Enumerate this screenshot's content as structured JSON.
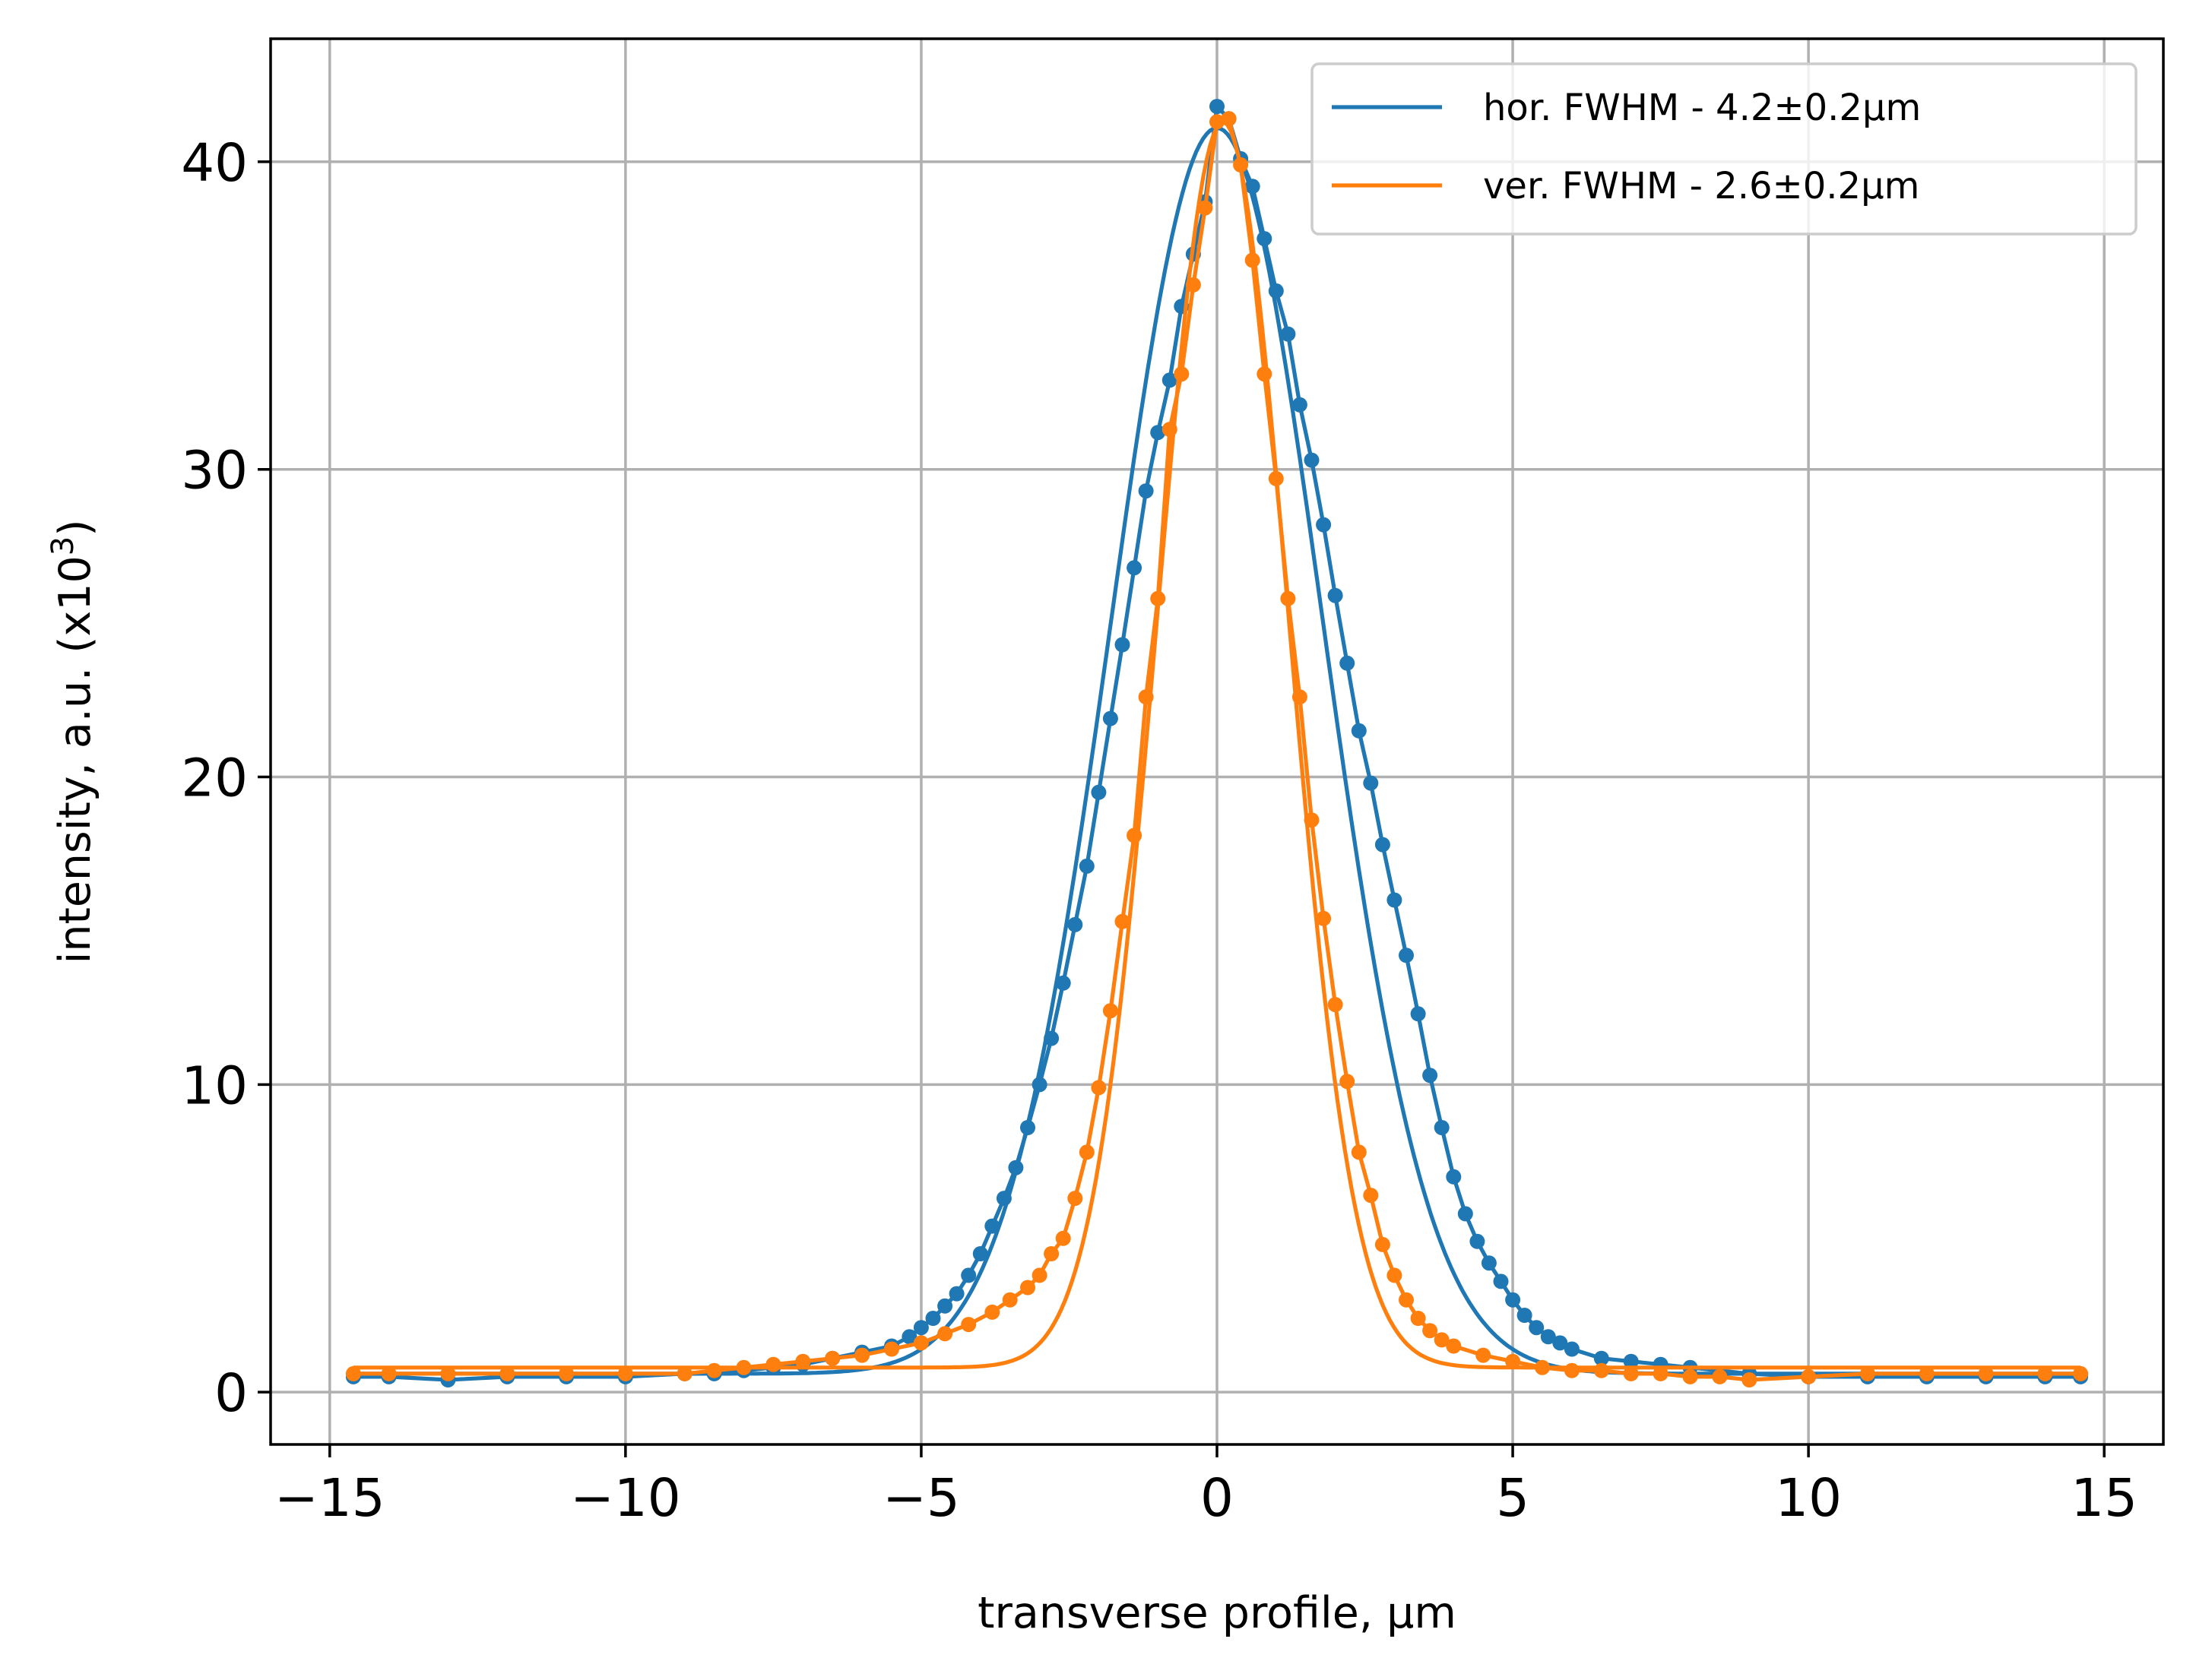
{
  "chart_data": {
    "type": "line",
    "xlabel": "transverse profile, µm",
    "ylabel": "intensity, a.u. (x10",
    "ylabel_superscript": "3",
    "ylabel_suffix": ")",
    "xlim": [
      -16.0,
      16.0
    ],
    "ylim": [
      -1.7,
      44.0
    ],
    "x_ticks": [
      -15,
      -10,
      -5,
      0,
      5,
      10,
      15
    ],
    "x_tick_labels": [
      "−15",
      "−10",
      "−5",
      "0",
      "5",
      "10",
      "15"
    ],
    "y_ticks": [
      0,
      10,
      20,
      30,
      40
    ],
    "y_tick_labels": [
      "0",
      "10",
      "20",
      "30",
      "40"
    ],
    "grid": true,
    "legend_position": "top-right",
    "colors": {
      "horizontal": "#1f77b4",
      "vertical": "#ff7f0e"
    },
    "series": [
      {
        "name": "hor. FWHM - 4.2±0.2µm",
        "color": "#1f77b4",
        "data_points": {
          "x": [
            -14.6,
            -14.0,
            -13.0,
            -12.0,
            -11.0,
            -10.0,
            -9.0,
            -8.5,
            -8.0,
            -7.5,
            -7.0,
            -6.5,
            -6.0,
            -5.5,
            -5.2,
            -5.0,
            -4.8,
            -4.6,
            -4.4,
            -4.2,
            -4.0,
            -3.8,
            -3.6,
            -3.4,
            -3.2,
            -3.0,
            -2.8,
            -2.6,
            -2.4,
            -2.2,
            -2.0,
            -1.8,
            -1.6,
            -1.4,
            -1.2,
            -1.0,
            -0.8,
            -0.6,
            -0.4,
            -0.2,
            0.0,
            0.2,
            0.4,
            0.6,
            0.8,
            1.0,
            1.2,
            1.4,
            1.6,
            1.8,
            2.0,
            2.2,
            2.4,
            2.6,
            2.8,
            3.0,
            3.2,
            3.4,
            3.6,
            3.8,
            4.0,
            4.2,
            4.4,
            4.6,
            4.8,
            5.0,
            5.2,
            5.4,
            5.6,
            5.8,
            6.0,
            6.5,
            7.0,
            7.5,
            8.0,
            9.0,
            10.0,
            11.0,
            12.0,
            13.0,
            14.0,
            14.6
          ],
          "y": [
            0.5,
            0.5,
            0.4,
            0.5,
            0.5,
            0.5,
            0.6,
            0.6,
            0.7,
            0.8,
            0.9,
            1.1,
            1.3,
            1.5,
            1.8,
            2.1,
            2.4,
            2.8,
            3.2,
            3.8,
            4.5,
            5.4,
            6.3,
            7.3,
            8.6,
            10.0,
            11.5,
            13.3,
            15.2,
            17.1,
            19.5,
            21.9,
            24.3,
            26.8,
            29.3,
            31.2,
            32.9,
            35.3,
            37.0,
            38.7,
            41.8,
            41.4,
            40.1,
            39.2,
            37.5,
            35.8,
            34.4,
            32.1,
            30.3,
            28.2,
            25.9,
            23.7,
            21.5,
            19.8,
            17.8,
            16.0,
            14.2,
            12.3,
            10.3,
            8.6,
            7.0,
            5.8,
            4.9,
            4.2,
            3.6,
            3.0,
            2.5,
            2.1,
            1.8,
            1.6,
            1.4,
            1.1,
            1.0,
            0.9,
            0.8,
            0.6,
            0.5,
            0.5,
            0.5,
            0.5,
            0.5,
            0.5
          ]
        },
        "fit": {
          "model": "gaussian",
          "amplitude": 40.5,
          "center": 0.0,
          "fwhm": 4.2,
          "offset": 0.6
        }
      },
      {
        "name": "ver. FWHM - 2.6±0.2µm",
        "color": "#ff7f0e",
        "data_points": {
          "x": [
            -14.6,
            -14.0,
            -13.0,
            -12.0,
            -11.0,
            -10.0,
            -9.0,
            -8.5,
            -8.0,
            -7.5,
            -7.0,
            -6.5,
            -6.0,
            -5.5,
            -5.0,
            -4.6,
            -4.2,
            -3.8,
            -3.5,
            -3.2,
            -3.0,
            -2.8,
            -2.6,
            -2.4,
            -2.2,
            -2.0,
            -1.8,
            -1.6,
            -1.4,
            -1.2,
            -1.0,
            -0.8,
            -0.6,
            -0.4,
            -0.2,
            0.0,
            0.2,
            0.4,
            0.6,
            0.8,
            1.0,
            1.2,
            1.4,
            1.6,
            1.8,
            2.0,
            2.2,
            2.4,
            2.6,
            2.8,
            3.0,
            3.2,
            3.4,
            3.6,
            3.8,
            4.0,
            4.5,
            5.0,
            5.5,
            6.0,
            6.5,
            7.0,
            7.5,
            8.0,
            8.5,
            9.0,
            10.0,
            11.0,
            12.0,
            13.0,
            14.0,
            14.6
          ],
          "y": [
            0.6,
            0.6,
            0.6,
            0.6,
            0.6,
            0.6,
            0.6,
            0.7,
            0.8,
            0.9,
            1.0,
            1.1,
            1.2,
            1.4,
            1.6,
            1.9,
            2.2,
            2.6,
            3.0,
            3.4,
            3.8,
            4.5,
            5.0,
            6.3,
            7.8,
            9.9,
            12.4,
            15.3,
            18.1,
            22.6,
            25.8,
            31.3,
            33.1,
            36.0,
            38.5,
            41.3,
            41.4,
            39.9,
            36.8,
            33.1,
            29.7,
            25.8,
            22.6,
            18.6,
            15.4,
            12.6,
            10.1,
            7.8,
            6.4,
            4.8,
            3.8,
            3.0,
            2.4,
            2.0,
            1.7,
            1.5,
            1.2,
            1.0,
            0.8,
            0.7,
            0.7,
            0.6,
            0.6,
            0.5,
            0.5,
            0.4,
            0.5,
            0.6,
            0.6,
            0.6,
            0.6,
            0.6
          ]
        },
        "fit": {
          "model": "gaussian",
          "amplitude": 40.5,
          "center": 0.1,
          "fwhm": 2.6,
          "offset": 0.8
        }
      }
    ]
  }
}
